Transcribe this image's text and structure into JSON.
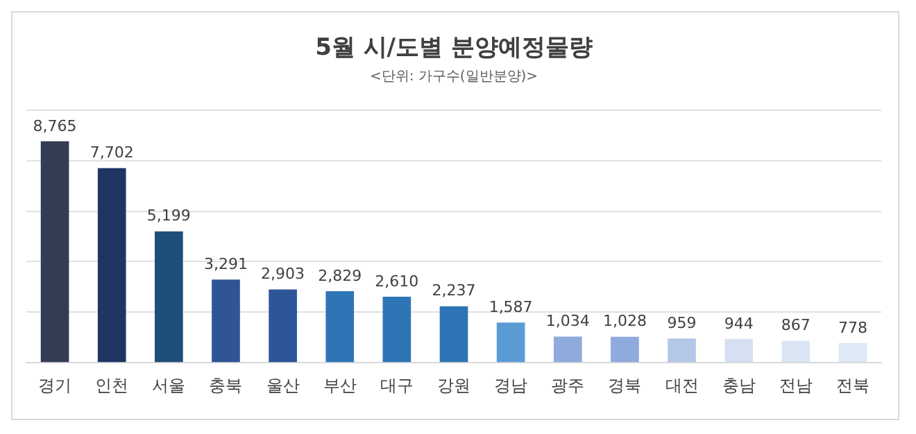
{
  "chart_data": {
    "type": "bar",
    "title": "5월 시/도별 분양예정물량",
    "subtitle": "<단위: 가구수(일반분양)>",
    "categories": [
      "경기",
      "인천",
      "서울",
      "충북",
      "울산",
      "부산",
      "대구",
      "강원",
      "경남",
      "광주",
      "경북",
      "대전",
      "충남",
      "전남",
      "전북"
    ],
    "values": [
      8765,
      7702,
      5199,
      3291,
      2903,
      2829,
      2610,
      2237,
      1587,
      1034,
      1028,
      959,
      944,
      867,
      778
    ],
    "colors": [
      "#323d54",
      "#1f3564",
      "#1f4e79",
      "#2f5597",
      "#2e5597",
      "#2e75b6",
      "#2e75b6",
      "#2e74b5",
      "#5b9bd5",
      "#8faadc",
      "#8faadc",
      "#b4c7e7",
      "#d6e0f3",
      "#dae6f4",
      "#dee9f5"
    ],
    "ylim": [
      0,
      10000
    ],
    "yticks": [
      {
        "value": 0,
        "label": null
      },
      {
        "value": 2000,
        "label": null
      },
      {
        "value": 4000,
        "label": null
      },
      {
        "value": 6000,
        "label": null
      },
      {
        "value": 8000,
        "label": null
      },
      {
        "value": 10000,
        "label": null
      }
    ],
    "value_labels": [
      "8,765",
      "7,702",
      "5,199",
      "3,291",
      "2,903",
      "2,829",
      "2,610",
      "2,237",
      "1,587",
      "1,034",
      "1,028",
      "959",
      "944",
      "867",
      "778"
    ],
    "grid": "y",
    "tick_labels": "x",
    "legend": false
  }
}
